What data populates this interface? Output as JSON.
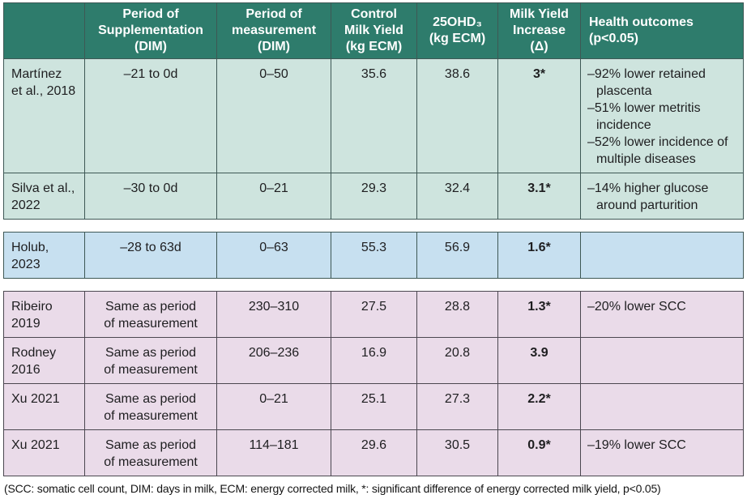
{
  "table": {
    "headers": [
      {
        "lines": []
      },
      {
        "lines": [
          "Period of",
          "Supplementation",
          "(DIM)"
        ]
      },
      {
        "lines": [
          "Period of",
          "measurement",
          "(DIM)"
        ]
      },
      {
        "lines": [
          "Control",
          "Milk Yield",
          "(kg ECM)"
        ]
      },
      {
        "lines": [
          "25OHD₃",
          "(kg ECM)"
        ]
      },
      {
        "lines": [
          "Milk Yield",
          "Increase",
          "(Δ)"
        ]
      },
      {
        "lines": [
          "Health outcomes",
          "(p<0.05)"
        ]
      }
    ],
    "groups": [
      {
        "name": "prepartum-supplementation",
        "row_bg": "#cee4de",
        "rows": [
          {
            "study_lines": [
              "Martínez",
              "et al., 2018"
            ],
            "supp_lines": [
              "–21 to 0d"
            ],
            "measurement": "0–50",
            "control": "35.6",
            "vitd": "38.6",
            "increase": "3*",
            "outcomes": [
              "–92% lower retained plascenta",
              "–51% lower metritis incidence",
              "–52% lower incidence of multiple diseases"
            ]
          },
          {
            "study_lines": [
              "Silva et al.,",
              "2022"
            ],
            "supp_lines": [
              "–30 to 0d"
            ],
            "measurement": "0–21",
            "control": "29.3",
            "vitd": "32.4",
            "increase": "3.1*",
            "outcomes": [
              "–14% higher glucose around parturition"
            ]
          }
        ]
      },
      {
        "name": "transition-supplementation",
        "row_bg": "#c7e0f0",
        "rows": [
          {
            "study_lines": [
              "Holub,",
              "2023"
            ],
            "supp_lines": [
              "–28 to 63d"
            ],
            "measurement": "0–63",
            "control": "55.3",
            "vitd": "56.9",
            "increase": "1.6*",
            "outcomes": []
          }
        ]
      },
      {
        "name": "lactation-supplementation",
        "row_bg": "#eadbe9",
        "rows": [
          {
            "study_lines": [
              "Ribeiro",
              "2019"
            ],
            "supp_lines": [
              "Same as period",
              "of measurement"
            ],
            "measurement": "230–310",
            "control": "27.5",
            "vitd": "28.8",
            "increase": "1.3*",
            "outcomes": [
              "–20% lower SCC"
            ]
          },
          {
            "study_lines": [
              "Rodney",
              "2016"
            ],
            "supp_lines": [
              "Same as period",
              "of measurement"
            ],
            "measurement": "206–236",
            "control": "16.9",
            "vitd": "20.8",
            "increase": "3.9",
            "outcomes": []
          },
          {
            "study_lines": [
              "Xu 2021"
            ],
            "supp_lines": [
              "Same as period",
              "of measurement"
            ],
            "measurement": "0–21",
            "control": "25.1",
            "vitd": "27.3",
            "increase": "2.2*",
            "outcomes": []
          },
          {
            "study_lines": [
              "Xu 2021"
            ],
            "supp_lines": [
              "Same as period",
              "of measurement"
            ],
            "measurement": "114–181",
            "control": "29.6",
            "vitd": "30.5",
            "increase": "0.9*",
            "outcomes": [
              "–19% lower SCC"
            ]
          }
        ]
      }
    ],
    "colors": {
      "header_bg": "#2e7c6c",
      "header_text": "#ffffff",
      "green_row": "#cee4de",
      "blue_row": "#c7e0f0",
      "pink_row": "#eadbe9",
      "grid_teal": "#3e5855",
      "grid_pink": "#4b4750"
    },
    "footnote": "(SCC: somatic cell count, DIM: days in milk, ECM: energy corrected milk, *: significant difference of energy corrected milk yield, p<0.05)"
  }
}
